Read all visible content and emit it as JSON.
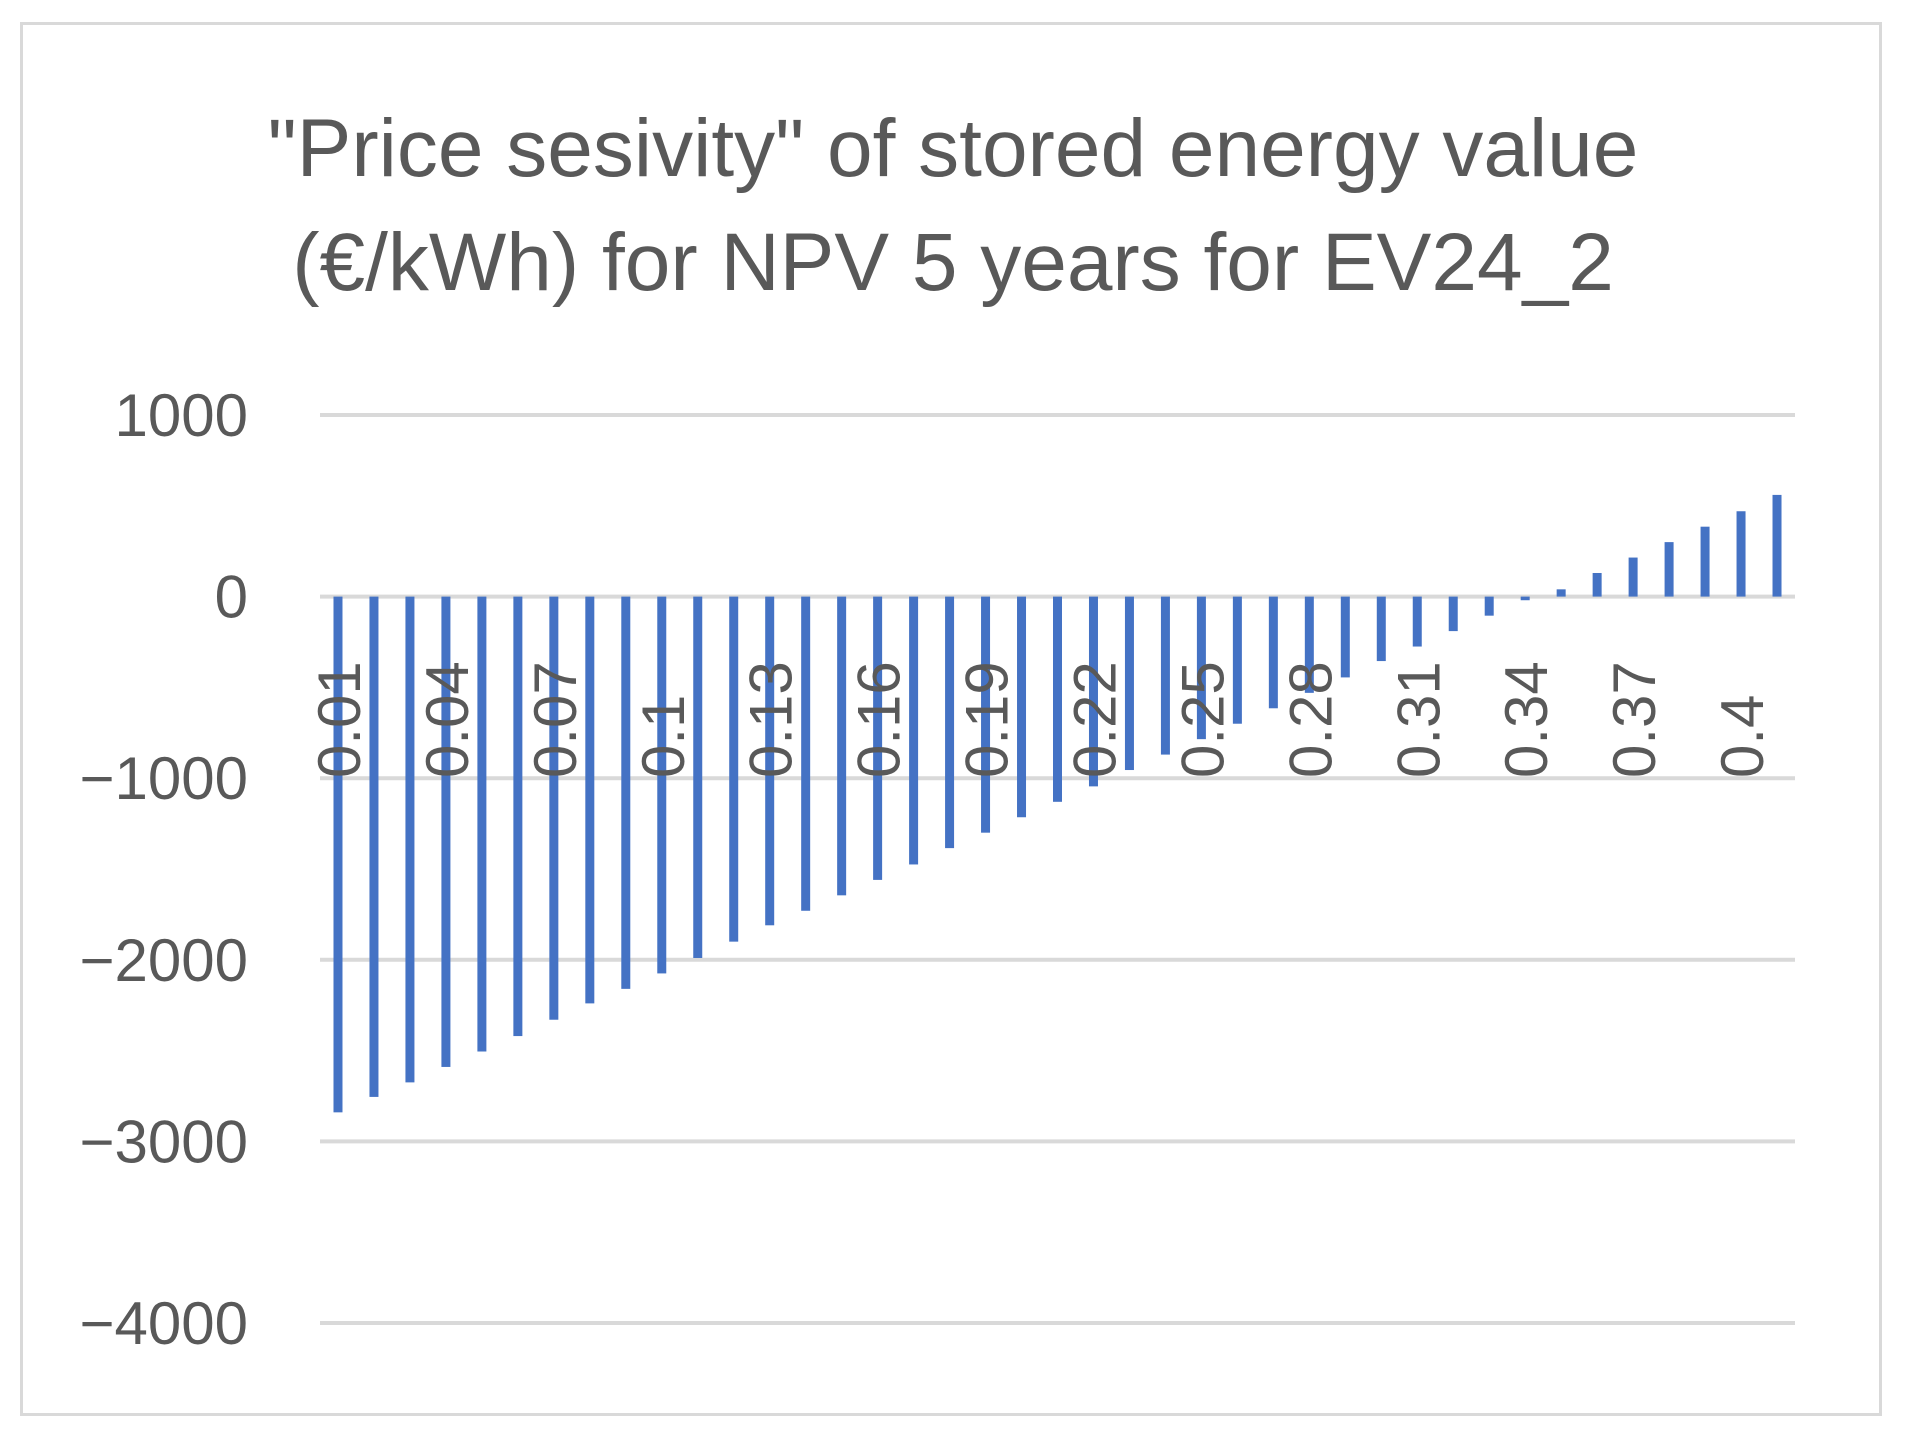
{
  "chart_data": {
    "type": "bar",
    "title_line1": "\"Price sesivity\" of stored energy value",
    "title_line2": "(€/kWh) for NPV 5 years for EV24_2",
    "title": "\"Price sesivity\" of stored energy value (€/kWh) for NPV 5 years for EV24_2",
    "xlabel": "",
    "ylabel": "",
    "ylim": [
      -4000,
      1000
    ],
    "y_ticks": [
      1000,
      0,
      -1000,
      -2000,
      -3000,
      -4000
    ],
    "y_tick_labels": [
      "1000",
      "0",
      "−1000",
      "−2000",
      "−3000",
      "−4000"
    ],
    "grid": true,
    "bar_color": "#4472c4",
    "categories": [
      "0.01",
      "0.02",
      "0.03",
      "0.04",
      "0.05",
      "0.06",
      "0.07",
      "0.08",
      "0.09",
      "0.1",
      "0.11",
      "0.12",
      "0.13",
      "0.14",
      "0.15",
      "0.16",
      "0.17",
      "0.18",
      "0.19",
      "0.2",
      "0.21",
      "0.22",
      "0.23",
      "0.24",
      "0.25",
      "0.26",
      "0.27",
      "0.28",
      "0.29",
      "0.3",
      "0.31",
      "0.32",
      "0.33",
      "0.34",
      "0.35",
      "0.36",
      "0.37",
      "0.38",
      "0.39",
      "0.4",
      "0.41"
    ],
    "x_tick_labels_shown": [
      "0.01",
      "0.04",
      "0.07",
      "0.1",
      "0.13",
      "0.16",
      "0.19",
      "0.22",
      "0.25",
      "0.28",
      "0.31",
      "0.34",
      "0.37",
      "0.4"
    ],
    "values": [
      -2840,
      -2755,
      -2675,
      -2590,
      -2505,
      -2420,
      -2330,
      -2240,
      -2160,
      -2075,
      -1990,
      -1900,
      -1810,
      -1730,
      -1645,
      -1560,
      -1475,
      -1385,
      -1300,
      -1215,
      -1130,
      -1045,
      -955,
      -870,
      -785,
      -700,
      -615,
      -530,
      -445,
      -355,
      -275,
      -190,
      -105,
      -20,
      40,
      130,
      215,
      300,
      385,
      470,
      560
    ]
  }
}
